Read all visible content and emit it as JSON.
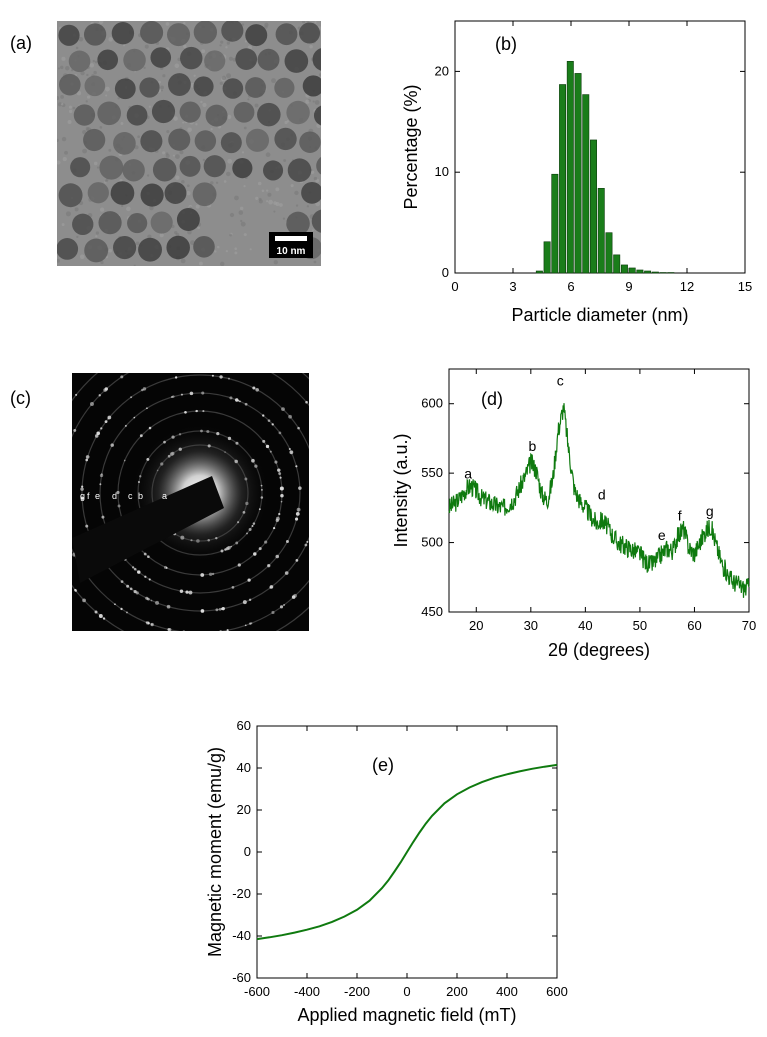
{
  "panels": {
    "a": {
      "label": "(a)",
      "scalebar_label": "10 nm"
    },
    "c": {
      "label": "(c)",
      "ring_labels": [
        "g",
        "f",
        "e",
        "d",
        "c",
        "b",
        "a"
      ]
    }
  },
  "colors": {
    "series": "#0f7a0f",
    "bar_fill": "#1a7d1a",
    "bar_stroke": "#0b3b0b"
  },
  "chart_data": [
    {
      "id": "b",
      "type": "bar",
      "panel_label": "(b)",
      "title": "",
      "xlabel": "Particle diameter (nm)",
      "ylabel": "Percentage (%)",
      "xlim": [
        0,
        15
      ],
      "ylim": [
        0,
        25
      ],
      "xticks": [
        0,
        3,
        6,
        9,
        12,
        15
      ],
      "yticks": [
        0,
        10,
        20
      ],
      "bin_width": 0.4,
      "x": [
        4.4,
        4.8,
        5.2,
        5.6,
        6.0,
        6.4,
        6.8,
        7.2,
        7.6,
        8.0,
        8.4,
        8.8,
        9.2,
        9.6,
        10.0,
        10.4,
        10.8,
        11.2
      ],
      "values": [
        0.2,
        3.1,
        9.8,
        18.7,
        21.0,
        19.8,
        17.7,
        13.2,
        8.4,
        4.0,
        1.8,
        0.8,
        0.5,
        0.3,
        0.2,
        0.1,
        0.05,
        0.05
      ]
    },
    {
      "id": "d",
      "type": "line",
      "panel_label": "(d)",
      "title": "",
      "xlabel": "2θ (degrees)",
      "ylabel": "Intensity (a.u.)",
      "xlim": [
        15,
        70
      ],
      "ylim": [
        450,
        625
      ],
      "xticks": [
        20,
        30,
        40,
        50,
        60,
        70
      ],
      "yticks": [
        450,
        500,
        550,
        600
      ],
      "x": [
        15,
        16,
        17,
        18,
        19,
        20,
        21,
        22,
        23,
        24,
        25,
        26,
        27,
        28,
        29,
        30,
        31,
        32,
        33,
        34,
        35,
        36,
        37,
        38,
        39,
        40,
        41,
        42,
        43,
        44,
        45,
        46,
        47,
        48,
        49,
        50,
        51,
        52,
        53,
        54,
        55,
        56,
        57,
        58,
        59,
        60,
        61,
        62,
        63,
        64,
        65,
        66,
        67,
        68,
        69,
        70
      ],
      "y": [
        525,
        528,
        532,
        538,
        541,
        537,
        532,
        530,
        528,
        526,
        525,
        528,
        532,
        540,
        548,
        558,
        552,
        535,
        530,
        545,
        580,
        598,
        565,
        538,
        530,
        525,
        519,
        514,
        516,
        512,
        505,
        500,
        498,
        496,
        494,
        492,
        486,
        484,
        487,
        492,
        496,
        494,
        505,
        510,
        496,
        492,
        500,
        508,
        512,
        498,
        485,
        478,
        472,
        470,
        467,
        468
      ],
      "annotations": [
        {
          "text": "a",
          "x": 18.5,
          "y": 546
        },
        {
          "text": "b",
          "x": 30.3,
          "y": 566
        },
        {
          "text": "c",
          "x": 35.4,
          "y": 613
        },
        {
          "text": "d",
          "x": 43.0,
          "y": 531
        },
        {
          "text": "e",
          "x": 54.0,
          "y": 502
        },
        {
          "text": "f",
          "x": 57.3,
          "y": 516
        },
        {
          "text": "g",
          "x": 62.8,
          "y": 519
        }
      ]
    },
    {
      "id": "e",
      "type": "line",
      "panel_label": "(e)",
      "title": "",
      "xlabel": "Applied magnetic field (mT)",
      "ylabel": "Magnetic moment (emu/g)",
      "xlim": [
        -600,
        600
      ],
      "ylim": [
        -60,
        60
      ],
      "xticks": [
        -600,
        -400,
        -200,
        0,
        200,
        400,
        600
      ],
      "yticks": [
        -60,
        -40,
        -20,
        0,
        20,
        40,
        60
      ],
      "x": [
        -600,
        -550,
        -500,
        -450,
        -400,
        -350,
        -300,
        -250,
        -200,
        -150,
        -100,
        -75,
        -50,
        -25,
        0,
        25,
        50,
        75,
        100,
        150,
        200,
        250,
        300,
        350,
        400,
        450,
        500,
        550,
        600
      ],
      "y": [
        -41.5,
        -40.6,
        -39.6,
        -38.4,
        -37.0,
        -35.4,
        -33.3,
        -30.7,
        -27.5,
        -23.2,
        -17.2,
        -13.5,
        -9.3,
        -4.8,
        0,
        4.8,
        9.3,
        13.5,
        17.2,
        23.2,
        27.5,
        30.7,
        33.3,
        35.4,
        37.0,
        38.4,
        39.6,
        40.6,
        41.5
      ]
    }
  ]
}
